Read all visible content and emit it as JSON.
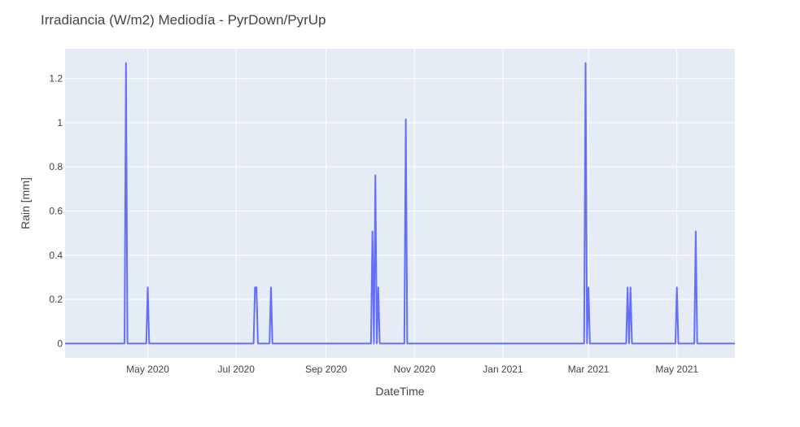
{
  "chart_data": {
    "type": "line",
    "title": "Irradiancia (W/m2) Mediodía - PyrDown/PyrUp",
    "xlabel": "DateTime",
    "ylabel": "Rain [mm]",
    "x_range": [
      "2020-03-05",
      "2021-06-10"
    ],
    "ylim": [
      -0.065,
      1.335
    ],
    "grid": true,
    "colors": {
      "plot_bg": "#e5ecf6",
      "grid": "#ffffff",
      "line": "#636efa"
    },
    "x_ticks": [
      {
        "date": "2020-05-01",
        "label": "May 2020"
      },
      {
        "date": "2020-07-01",
        "label": "Jul 2020"
      },
      {
        "date": "2020-09-01",
        "label": "Sep 2020"
      },
      {
        "date": "2020-11-01",
        "label": "Nov 2020"
      },
      {
        "date": "2021-01-01",
        "label": "Jan 2021"
      },
      {
        "date": "2021-03-01",
        "label": "Mar 2021"
      },
      {
        "date": "2021-05-01",
        "label": "May 2021"
      }
    ],
    "y_ticks": [
      {
        "value": 0,
        "label": "0"
      },
      {
        "value": 0.2,
        "label": "0.2"
      },
      {
        "value": 0.4,
        "label": "0.4"
      },
      {
        "value": 0.6,
        "label": "0.6"
      },
      {
        "value": 0.8,
        "label": "0.8"
      },
      {
        "value": 1,
        "label": "1"
      },
      {
        "value": 1.2,
        "label": "1.2"
      }
    ],
    "series": [
      {
        "x": [
          "2020-03-05",
          "2020-04-15",
          "2020-04-16",
          "2020-04-17",
          "2020-04-30",
          "2020-05-01",
          "2020-05-02",
          "2020-07-13",
          "2020-07-14",
          "2020-07-15",
          "2020-07-16",
          "2020-07-24",
          "2020-07-25",
          "2020-07-26",
          "2020-10-02",
          "2020-10-03",
          "2020-10-04",
          "2020-10-05",
          "2020-10-06",
          "2020-10-07",
          "2020-10-08",
          "2020-10-25",
          "2020-10-26",
          "2020-10-27",
          "2021-02-26",
          "2021-02-27",
          "2021-02-28",
          "2021-03-01",
          "2021-03-02",
          "2021-03-03",
          "2021-03-27",
          "2021-03-28",
          "2021-03-29",
          "2021-03-30",
          "2021-03-31",
          "2021-04-30",
          "2021-05-01",
          "2021-05-02",
          "2021-05-13",
          "2021-05-14",
          "2021-05-15",
          "2021-06-10"
        ],
        "y": [
          0,
          0,
          1.27,
          0,
          0,
          0.254,
          0,
          0,
          0.254,
          0.254,
          0,
          0,
          0.254,
          0,
          0,
          0.508,
          0,
          0.762,
          0,
          0.254,
          0,
          0,
          1.016,
          0,
          0,
          1.27,
          0,
          0.254,
          0,
          0,
          0,
          0.254,
          0,
          0.254,
          0,
          0,
          0.254,
          0,
          0,
          0.508,
          0,
          0
        ]
      }
    ]
  }
}
